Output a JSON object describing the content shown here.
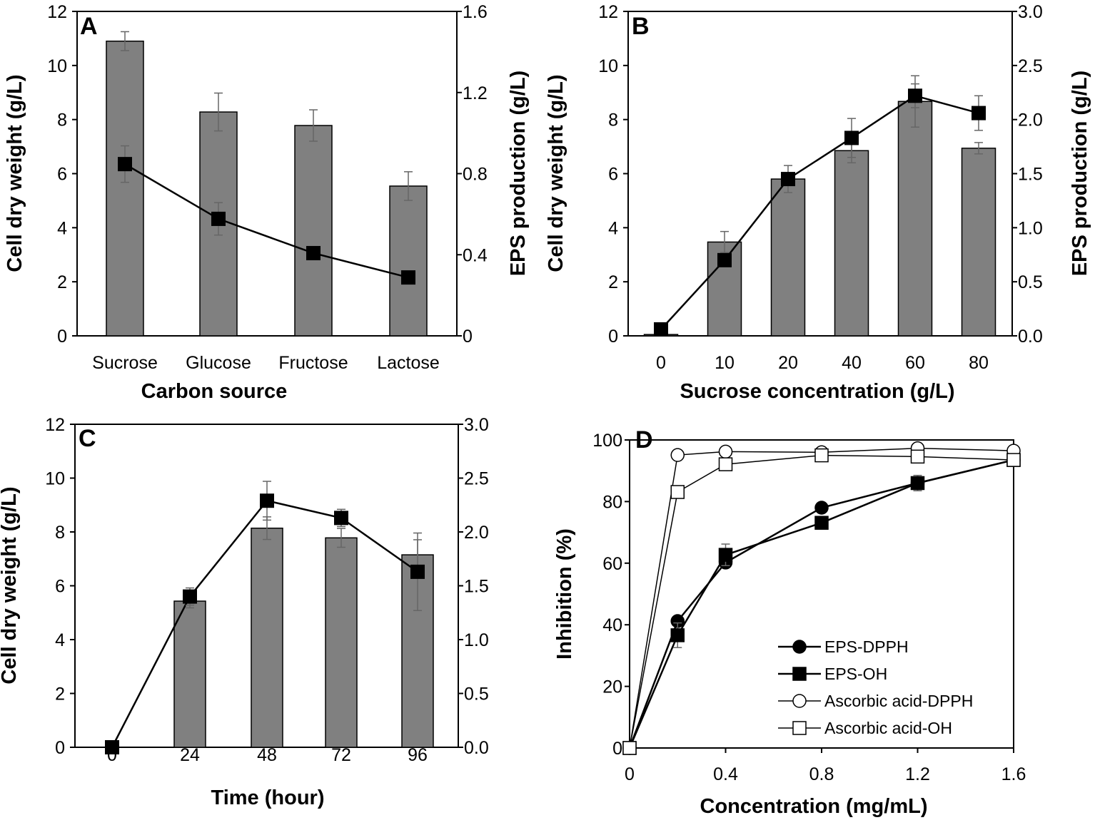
{
  "chart_data": [
    {
      "panel": "A",
      "type": "bar+line",
      "xlabel": "Carbon source",
      "ylabel": "Cell dry weight (g/L)",
      "y2label": "EPS production (g/L)",
      "categories": [
        "Sucrose",
        "Glucose",
        "Fructose",
        "Lactose"
      ],
      "ylim": [
        0,
        12
      ],
      "yticks": [
        "0",
        "2",
        "4",
        "6",
        "8",
        "10",
        "12"
      ],
      "y2lim": [
        0,
        1.6
      ],
      "y2ticks": [
        "0",
        "0.4",
        "0.8",
        "1.2",
        "1.6"
      ],
      "bars": {
        "values": [
          10.9,
          8.28,
          7.78,
          5.54
        ],
        "errors": [
          0.35,
          0.7,
          0.58,
          0.53
        ]
      },
      "line": {
        "values": [
          0.847,
          0.577,
          0.408,
          0.288
        ],
        "errors": [
          0.09,
          0.08,
          0.01,
          0.01
        ]
      }
    },
    {
      "panel": "B",
      "type": "bar+line",
      "xlabel": "Sucrose concentration (g/L)",
      "ylabel": "Cell dry weight (g/L)",
      "y2label": "EPS production (g/L)",
      "categories": [
        "0",
        "10",
        "20",
        "40",
        "60",
        "80"
      ],
      "ylim": [
        0,
        12
      ],
      "yticks": [
        "0",
        "2",
        "4",
        "6",
        "8",
        "10",
        "12"
      ],
      "y2lim": [
        0,
        3.0
      ],
      "y2ticks": [
        "0.0",
        "0.5",
        "1.0",
        "1.5",
        "2.0",
        "2.5",
        "3.0"
      ],
      "bars": {
        "values": [
          0.05,
          3.47,
          5.8,
          6.85,
          8.67,
          6.94
        ],
        "errors": [
          0,
          0.39,
          0.5,
          0.45,
          0.95,
          0.21
        ]
      },
      "line": {
        "values": [
          0.06,
          0.7,
          1.45,
          1.83,
          2.22,
          2.06
        ],
        "errors": [
          0,
          0.02,
          0.05,
          0.18,
          0.11,
          0.16
        ]
      }
    },
    {
      "panel": "C",
      "type": "bar+line",
      "xlabel": "Time (hour)",
      "ylabel": "Cell dry weight (g/L)",
      "y2label": "",
      "categories": [
        "0",
        "24",
        "48",
        "72",
        "96"
      ],
      "ylim": [
        0,
        12
      ],
      "yticks": [
        "0",
        "2",
        "4",
        "6",
        "8",
        "10",
        "12"
      ],
      "y2lim": [
        0,
        3.0
      ],
      "y2ticks": [
        "0.0",
        "0.5",
        "1.0",
        "1.5",
        "2.0",
        "2.5",
        "3.0"
      ],
      "bars": {
        "values": [
          0,
          5.43,
          8.14,
          7.78,
          7.15
        ],
        "errors": [
          0,
          0.25,
          0.42,
          0.35,
          0.56
        ]
      },
      "line": {
        "values": [
          0,
          1.4,
          2.29,
          2.13,
          1.63
        ],
        "errors": [
          0,
          0.08,
          0.18,
          0.08,
          0.36
        ]
      }
    },
    {
      "panel": "D",
      "type": "line",
      "xlabel": "Concentration (mg/mL)",
      "ylabel": "Inhibition (%)",
      "xlim": [
        0,
        1.6
      ],
      "xticks": [
        "0",
        "0.4",
        "0.8",
        "1.2",
        "1.6"
      ],
      "ylim": [
        0,
        100
      ],
      "yticks": [
        "0",
        "20",
        "40",
        "60",
        "80",
        "100"
      ],
      "x": [
        0,
        0.2,
        0.4,
        0.8,
        1.2,
        1.6
      ],
      "legend_position": "bottom-right",
      "series": [
        {
          "name": "EPS-DPPH",
          "marker": "filled-circle",
          "values": [
            0,
            41.2,
            60.2,
            78.0,
            86.0,
            93.5
          ],
          "errors": [
            0,
            1,
            1.5,
            1,
            1.5,
            1
          ]
        },
        {
          "name": "EPS-OH",
          "marker": "filled-square",
          "values": [
            0,
            36.6,
            62.7,
            73.1,
            86.0,
            93.5
          ],
          "errors": [
            0,
            4,
            3.5,
            1,
            2.5,
            1
          ]
        },
        {
          "name": "Ascorbic acid-DPPH",
          "marker": "open-circle",
          "values": [
            0,
            95.1,
            96.2,
            96.0,
            97.3,
            96.5
          ],
          "errors": [
            0,
            0,
            0,
            0,
            0,
            0
          ]
        },
        {
          "name": "Ascorbic acid-OH",
          "marker": "open-square",
          "values": [
            0,
            83.1,
            92.1,
            95.0,
            94.6,
            93.5
          ],
          "errors": [
            0,
            0,
            0,
            0,
            0,
            0
          ]
        }
      ]
    }
  ],
  "panel_labels": [
    "A",
    "B",
    "C",
    "D"
  ],
  "colors": {
    "bar": "#808080",
    "line": "#000000",
    "errorbar": "#666666"
  }
}
